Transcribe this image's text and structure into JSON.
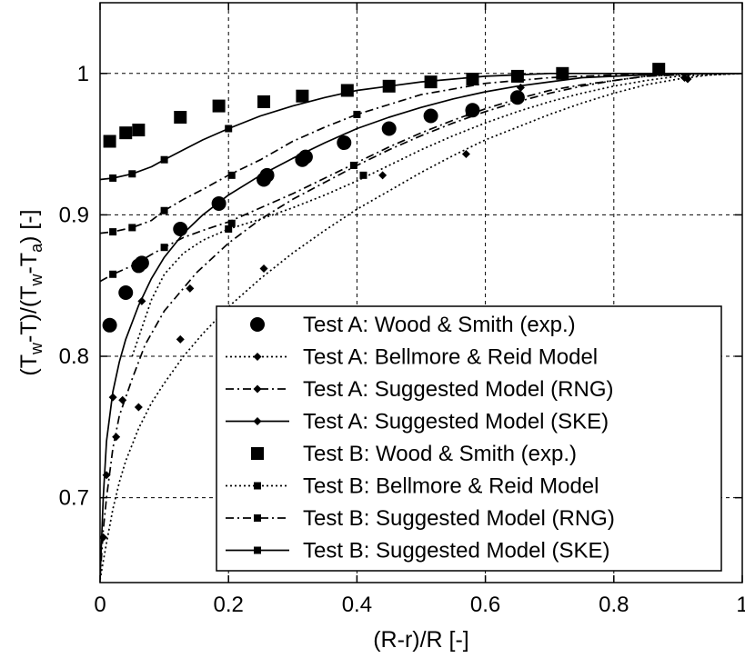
{
  "chart_data": {
    "type": "line",
    "xlabel": "(R-r)/R [-]",
    "ylabel": {
      "main": "(T",
      "sub1": "w",
      "mid": "-T)/(T",
      "sub2": "w",
      "mid2": "-T",
      "sub3": "a",
      "end": ") [-]"
    },
    "xlim": [
      0,
      1
    ],
    "ylim": [
      0.64,
      1.05
    ],
    "xticks": [
      0,
      0.2,
      0.4,
      0.6,
      0.8,
      1
    ],
    "xtick_labels": [
      "0",
      "0.2",
      "0.4",
      "0.6",
      "0.8",
      "1"
    ],
    "yticks": [
      0.7,
      0.8,
      0.9,
      1.0
    ],
    "ytick_labels": [
      "0.7",
      "0.8",
      "0.9",
      "1"
    ],
    "grid": true,
    "legend_position": "bottom-right",
    "series": [
      {
        "name": "Test A: Wood & Smith (exp.)",
        "style": "points",
        "marker": "circle-large",
        "x": [
          0.015,
          0.04,
          0.06,
          0.065,
          0.125,
          0.185,
          0.255,
          0.26,
          0.315,
          0.32,
          0.38,
          0.45,
          0.515,
          0.58,
          0.65
        ],
        "y": [
          0.822,
          0.845,
          0.864,
          0.866,
          0.89,
          0.908,
          0.925,
          0.928,
          0.939,
          0.941,
          0.951,
          0.961,
          0.97,
          0.974,
          0.983
        ]
      },
      {
        "name": "Test A: Bellmore & Reid Model",
        "style": "dotted",
        "marker": "diamond-small",
        "x": [
          0,
          0.005,
          0.01,
          0.02,
          0.03,
          0.04,
          0.06,
          0.08,
          0.1,
          0.13,
          0.16,
          0.2,
          0.25,
          0.3,
          0.35,
          0.4,
          0.45,
          0.5,
          0.55,
          0.6,
          0.65,
          0.7,
          0.75,
          0.8,
          0.85,
          0.9,
          0.95,
          1.0
        ],
        "y": [
          0.642,
          0.655,
          0.668,
          0.692,
          0.711,
          0.726,
          0.749,
          0.767,
          0.781,
          0.8,
          0.816,
          0.835,
          0.855,
          0.873,
          0.889,
          0.904,
          0.917,
          0.93,
          0.942,
          0.953,
          0.962,
          0.971,
          0.979,
          0.986,
          0.992,
          0.996,
          0.999,
          1.0
        ],
        "markers_x": [
          0.005,
          0.025,
          0.06,
          0.125,
          0.255,
          0.57,
          0.915
        ],
        "markers_y": [
          0.672,
          0.743,
          0.764,
          0.812,
          0.862,
          0.943,
          0.996
        ]
      },
      {
        "name": "Test A: Suggested Model (RNG)",
        "style": "dashdot",
        "marker": "diamond-small",
        "x": [
          0,
          0.005,
          0.01,
          0.02,
          0.03,
          0.05,
          0.07,
          0.1,
          0.15,
          0.2,
          0.25,
          0.3,
          0.35,
          0.4,
          0.45,
          0.5,
          0.55,
          0.6,
          0.65,
          0.7,
          0.75,
          0.8,
          0.85,
          0.9,
          0.95,
          1.0
        ],
        "y": [
          0.643,
          0.677,
          0.7,
          0.735,
          0.758,
          0.784,
          0.808,
          0.832,
          0.859,
          0.88,
          0.897,
          0.911,
          0.923,
          0.935,
          0.946,
          0.956,
          0.965,
          0.973,
          0.98,
          0.986,
          0.991,
          0.995,
          0.998,
          0.999,
          1.0,
          1.0
        ],
        "markers_x": [
          0.01,
          0.035,
          0.14,
          0.44,
          0.65,
          0.91
        ],
        "markers_y": [
          0.716,
          0.769,
          0.848,
          0.928,
          0.982,
          0.997
        ]
      },
      {
        "name": "Test A: Suggested Model (SKE)",
        "style": "solid",
        "marker": "diamond-small",
        "x": [
          0,
          0.005,
          0.01,
          0.02,
          0.03,
          0.04,
          0.06,
          0.08,
          0.1,
          0.13,
          0.16,
          0.2,
          0.25,
          0.3,
          0.35,
          0.4,
          0.45,
          0.5,
          0.55,
          0.6,
          0.65,
          0.7,
          0.75,
          0.8,
          0.85,
          0.9,
          0.95,
          1.0
        ],
        "y": [
          0.643,
          0.7,
          0.74,
          0.775,
          0.796,
          0.812,
          0.836,
          0.855,
          0.87,
          0.887,
          0.9,
          0.914,
          0.928,
          0.94,
          0.951,
          0.961,
          0.969,
          0.976,
          0.982,
          0.987,
          0.991,
          0.994,
          0.997,
          0.998,
          0.999,
          1.0,
          1.0,
          1.0
        ],
        "markers_x": [
          0.02,
          0.065,
          0.32,
          0.655
        ],
        "markers_y": [
          0.771,
          0.839,
          0.94,
          0.99
        ]
      },
      {
        "name": "Test B: Wood & Smith (exp.)",
        "style": "points",
        "marker": "square-large",
        "x": [
          0.015,
          0.04,
          0.06,
          0.125,
          0.185,
          0.255,
          0.315,
          0.385,
          0.45,
          0.515,
          0.58,
          0.65,
          0.72,
          0.87
        ],
        "y": [
          0.952,
          0.958,
          0.96,
          0.969,
          0.977,
          0.98,
          0.984,
          0.988,
          0.991,
          0.994,
          0.996,
          0.998,
          1.0,
          1.003
        ]
      },
      {
        "name": "Test B: Bellmore & Reid Model",
        "style": "dotted",
        "marker": "square-small",
        "x": [
          0.05,
          0.08,
          0.1,
          0.13,
          0.16,
          0.2,
          0.25,
          0.3,
          0.35,
          0.4,
          0.45,
          0.5,
          0.55,
          0.6,
          0.65,
          0.7,
          0.75,
          0.8,
          0.85,
          0.9,
          0.95,
          1.0
        ],
        "y": [
          0.8,
          0.84,
          0.858,
          0.873,
          0.882,
          0.89,
          0.897,
          0.905,
          0.914,
          0.924,
          0.935,
          0.946,
          0.956,
          0.965,
          0.973,
          0.98,
          0.986,
          0.991,
          0.995,
          0.998,
          0.999,
          1.0
        ],
        "markers_x": [
          0.2,
          0.41
        ],
        "markers_y": [
          0.89,
          0.928
        ]
      },
      {
        "name": "Test B: Suggested Model (RNG)",
        "style": "dashdot",
        "marker": "square-small",
        "x": [
          0,
          0.02,
          0.05,
          0.08,
          0.1,
          0.13,
          0.16,
          0.2,
          0.25,
          0.3,
          0.35,
          0.4,
          0.45,
          0.5,
          0.55,
          0.6,
          0.65,
          0.7,
          0.75,
          0.8,
          0.85,
          0.9,
          0.95,
          1.0
        ],
        "y": [
          0.853,
          0.858,
          0.864,
          0.872,
          0.877,
          0.884,
          0.889,
          0.895,
          0.905,
          0.915,
          0.926,
          0.937,
          0.948,
          0.958,
          0.967,
          0.975,
          0.982,
          0.988,
          0.992,
          0.995,
          0.998,
          0.999,
          1.0,
          1.0
        ],
        "markers_x": [
          0.02,
          0.1,
          0.205,
          0.395,
          0.575
        ],
        "markers_y": [
          0.858,
          0.877,
          0.894,
          0.935,
          0.972
        ]
      },
      {
        "name": "Test B: Suggested Model (RNG)",
        "style": "dashdot",
        "marker": "square-small",
        "legend": false,
        "x": [
          0,
          0.02,
          0.05,
          0.08,
          0.1,
          0.13,
          0.16,
          0.2,
          0.25,
          0.3,
          0.35,
          0.4,
          0.45,
          0.5,
          0.55,
          0.6,
          0.65,
          0.7,
          0.75,
          0.8,
          0.85,
          0.9,
          0.95,
          1.0
        ],
        "y": [
          0.887,
          0.888,
          0.891,
          0.896,
          0.903,
          0.911,
          0.918,
          0.928,
          0.939,
          0.952,
          0.962,
          0.971,
          0.978,
          0.985,
          0.989,
          0.993,
          0.995,
          0.997,
          0.998,
          0.999,
          1.0,
          1.0,
          1.0,
          1.0
        ],
        "markers_x": [
          0.02,
          0.05,
          0.1,
          0.205,
          0.4
        ],
        "markers_y": [
          0.888,
          0.891,
          0.903,
          0.928,
          0.971
        ]
      },
      {
        "name": "Test B: Suggested Model (SKE)",
        "style": "solid",
        "marker": "square-small",
        "x": [
          0,
          0.02,
          0.05,
          0.08,
          0.1,
          0.13,
          0.16,
          0.2,
          0.25,
          0.3,
          0.35,
          0.4,
          0.45,
          0.5,
          0.55,
          0.6,
          0.65,
          0.7,
          0.75,
          0.8,
          0.85,
          0.9,
          0.95,
          1.0
        ],
        "y": [
          0.925,
          0.926,
          0.929,
          0.934,
          0.939,
          0.946,
          0.953,
          0.961,
          0.97,
          0.977,
          0.983,
          0.988,
          0.991,
          0.994,
          0.996,
          0.998,
          0.999,
          1.0,
          1.0,
          1.0,
          1.0,
          1.0,
          1.0,
          1.0
        ],
        "markers_x": [
          0.02,
          0.05,
          0.1,
          0.2
        ],
        "markers_y": [
          0.926,
          0.929,
          0.939,
          0.961
        ]
      }
    ],
    "legend": [
      {
        "label": "Test A: Wood & Smith (exp.)",
        "line": "none",
        "marker": "circle-large"
      },
      {
        "label": "Test A: Bellmore & Reid Model",
        "line": "dotted",
        "marker": "diamond-small"
      },
      {
        "label": "Test A: Suggested Model (RNG)",
        "line": "dashdot",
        "marker": "diamond-small"
      },
      {
        "label": "Test A: Suggested Model (SKE)",
        "line": "solid",
        "marker": "diamond-small"
      },
      {
        "label": "Test B: Wood & Smith (exp.)",
        "line": "none",
        "marker": "square-large"
      },
      {
        "label": "Test B: Bellmore & Reid Model",
        "line": "dotted",
        "marker": "square-small"
      },
      {
        "label": "Test B: Suggested Model (RNG)",
        "line": "dashdot",
        "marker": "square-small"
      },
      {
        "label": "Test B: Suggested Model (SKE)",
        "line": "solid",
        "marker": "square-small"
      }
    ]
  }
}
